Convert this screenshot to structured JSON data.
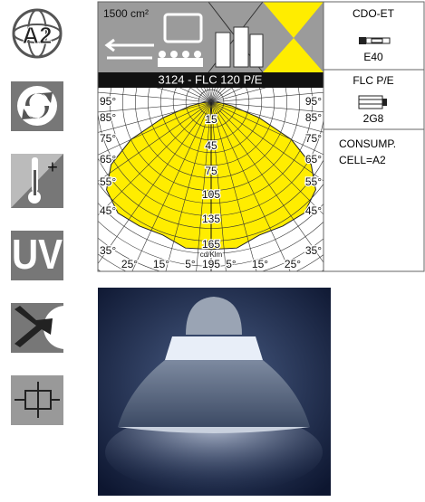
{
  "icons": {
    "energy_class": "A2",
    "temperature_symbol": "+",
    "uv": "UV"
  },
  "diagram": {
    "area": "1500 cm²",
    "title": "3124 - FLC 120 P/E",
    "left_angles": [
      "95°",
      "85°",
      "75°",
      "65°",
      "55°",
      "45°",
      "35°"
    ],
    "right_angles": [
      "95°",
      "85°",
      "75°",
      "65°",
      "55°",
      "45°",
      "35°"
    ],
    "bottom_angles": [
      "25°",
      "15°",
      "5°",
      "5°",
      "15°",
      "25°"
    ],
    "ring_labels": [
      "15",
      "45",
      "75",
      "105",
      "135",
      "165",
      "195"
    ],
    "unit": "cd/Klm"
  },
  "lamps": [
    {
      "code": "CDO-ET",
      "socket": "E40"
    },
    {
      "code": "FLC P/E",
      "socket": "2G8"
    }
  ],
  "consumption": {
    "label": "CONSUMP.",
    "cell": "CELL=A2"
  }
}
